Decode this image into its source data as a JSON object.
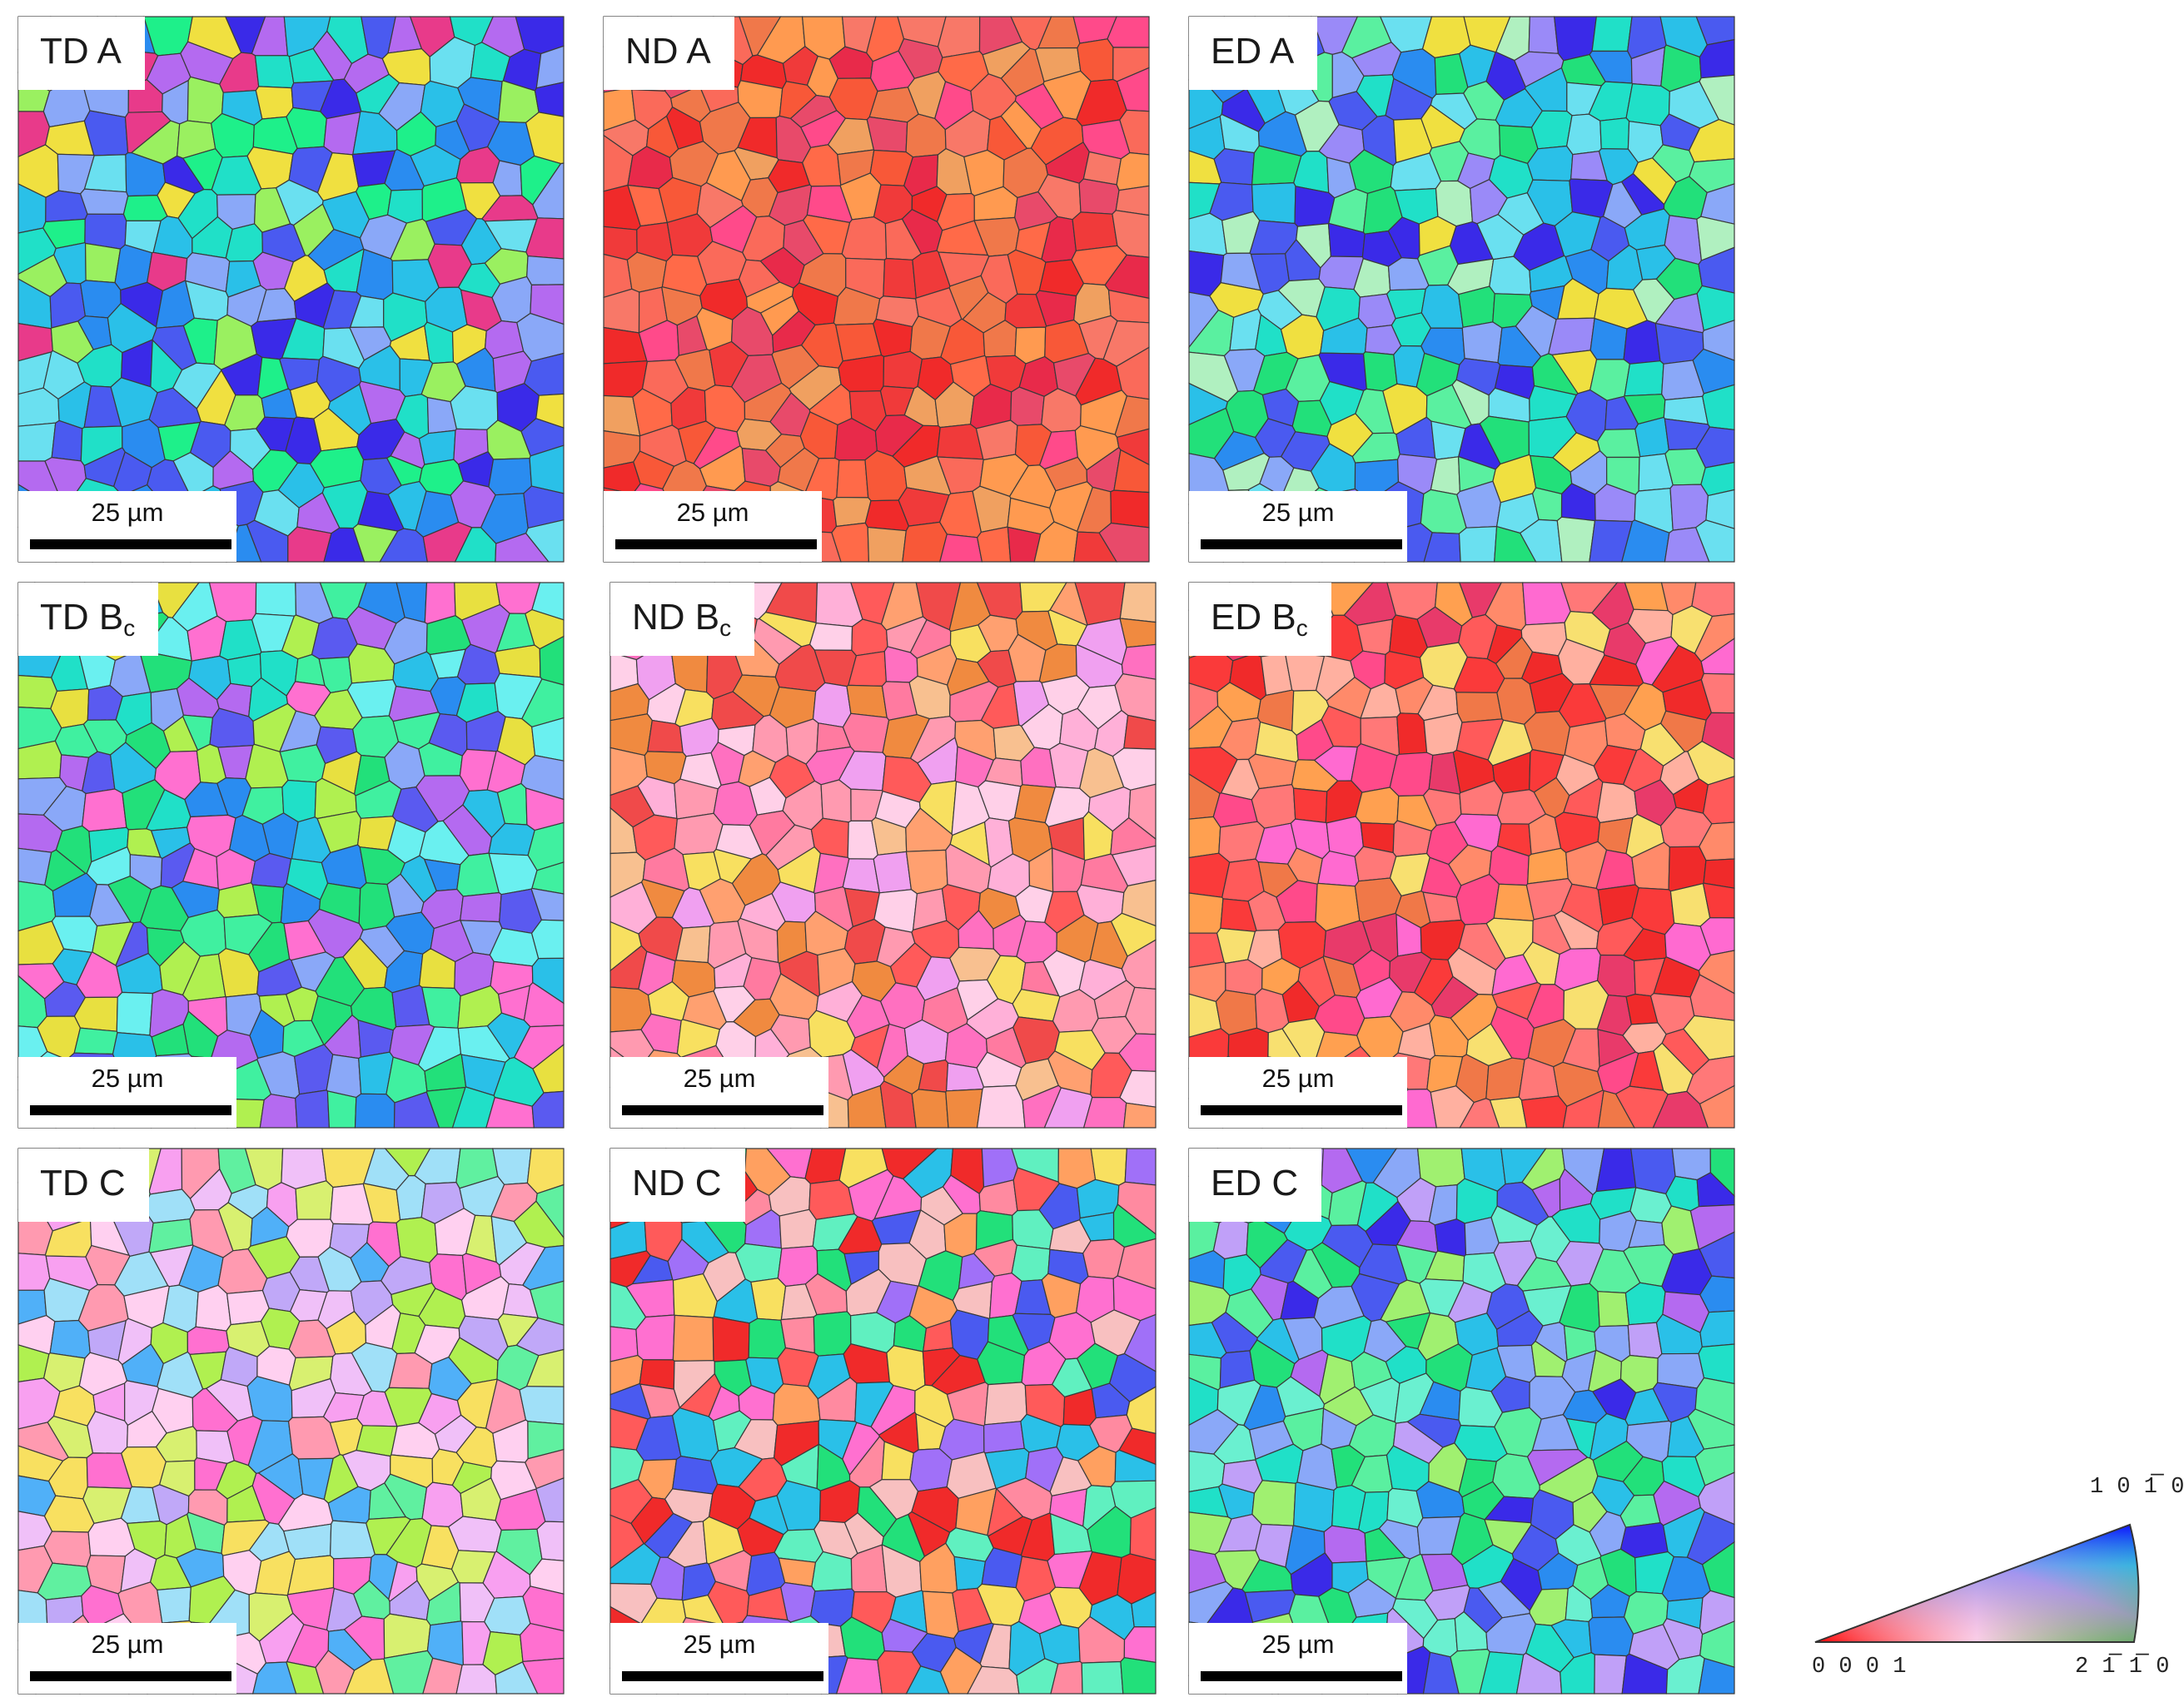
{
  "panels": [
    {
      "label": "TD A",
      "sub": "",
      "scale": "25 µm",
      "palette": [
        "#1ef08a",
        "#2a8cf0",
        "#3a2ae8",
        "#6ae0f0",
        "#b46af0",
        "#20e0c8",
        "#e83a8a",
        "#8aa8f8",
        "#2ac0e8",
        "#9af060",
        "#4a5af0",
        "#f0e040"
      ]
    },
    {
      "label": "ND A",
      "sub": "",
      "scale": "25 µm",
      "palette": [
        "#f02a2a",
        "#f85838",
        "#f0784a",
        "#e84a6a",
        "#ff6a48",
        "#f0a060",
        "#ff4a8a",
        "#f87868",
        "#e82a4a",
        "#ff9a50",
        "#f03a3a",
        "#fa6a5a"
      ]
    },
    {
      "label": "ED A",
      "sub": "",
      "scale": "25 µm",
      "palette": [
        "#22e07a",
        "#2a8cf0",
        "#3a2ae8",
        "#6ae0f0",
        "#9a8af8",
        "#20e0c8",
        "#5af0a0",
        "#8aa8f8",
        "#2ac0e8",
        "#b0f0c0",
        "#4a5af0",
        "#f0e040"
      ]
    },
    {
      "label": "TD B",
      "sub": "c",
      "scale": "25 µm",
      "palette": [
        "#22e07a",
        "#2a8cf0",
        "#5a5af0",
        "#6af0f0",
        "#b46af0",
        "#20e0c8",
        "#e8e040",
        "#8aa8f8",
        "#2ac0e8",
        "#b0f050",
        "#ff70d0",
        "#40f0a0"
      ]
    },
    {
      "label": "ND B",
      "sub": "c",
      "scale": "25 µm",
      "palette": [
        "#f04a4a",
        "#ff7aa0",
        "#ffa070",
        "#ff70c0",
        "#f8e060",
        "#ffb0d8",
        "#ff5a5a",
        "#f8c090",
        "#ffd0e8",
        "#f0a0f0",
        "#f08a40",
        "#ff9ab0"
      ]
    },
    {
      "label": "ED B",
      "sub": "c",
      "scale": "25 µm",
      "palette": [
        "#f02a2a",
        "#ff5a5a",
        "#ff8a6a",
        "#ff4a8a",
        "#ffb0a0",
        "#f07848",
        "#ff6ad0",
        "#fa3a3a",
        "#f8e070",
        "#e83a6a",
        "#ffa050",
        "#ff7878"
      ]
    },
    {
      "label": "TD C",
      "sub": "",
      "scale": "25 µm",
      "palette": [
        "#f8a0f0",
        "#ff70d0",
        "#d8f070",
        "#a0e0f8",
        "#f8e060",
        "#f0c0f8",
        "#60f0a0",
        "#ff9ab0",
        "#c0a8f8",
        "#b0f050",
        "#50b0f8",
        "#ffd0f0"
      ]
    },
    {
      "label": "ND C",
      "sub": "",
      "scale": "25 µm",
      "palette": [
        "#f02a2a",
        "#22e07a",
        "#ffa060",
        "#4a5af0",
        "#ff70d0",
        "#f8e060",
        "#2ac0e8",
        "#ff5a5a",
        "#a070f8",
        "#60f0c0",
        "#ff8aa0",
        "#f8c0c0"
      ]
    },
    {
      "label": "ED C",
      "sub": "",
      "scale": "25 µm",
      "palette": [
        "#22e07a",
        "#2a8cf0",
        "#3a2ae8",
        "#6af0d0",
        "#b46af0",
        "#20e0c8",
        "#5af0a0",
        "#8aa8f8",
        "#2ac0e8",
        "#a0f070",
        "#4a5af0",
        "#c0a0f8"
      ]
    }
  ],
  "legend": {
    "top_label": "1 0 1̅ 0",
    "left_label": "0 0 0 1",
    "right_label": "2 1̅ 1̅ 0",
    "corner_colors": {
      "0001": "#ff0000",
      "2-1-10": "#00ff00",
      "10-10": "#0000ff"
    }
  }
}
